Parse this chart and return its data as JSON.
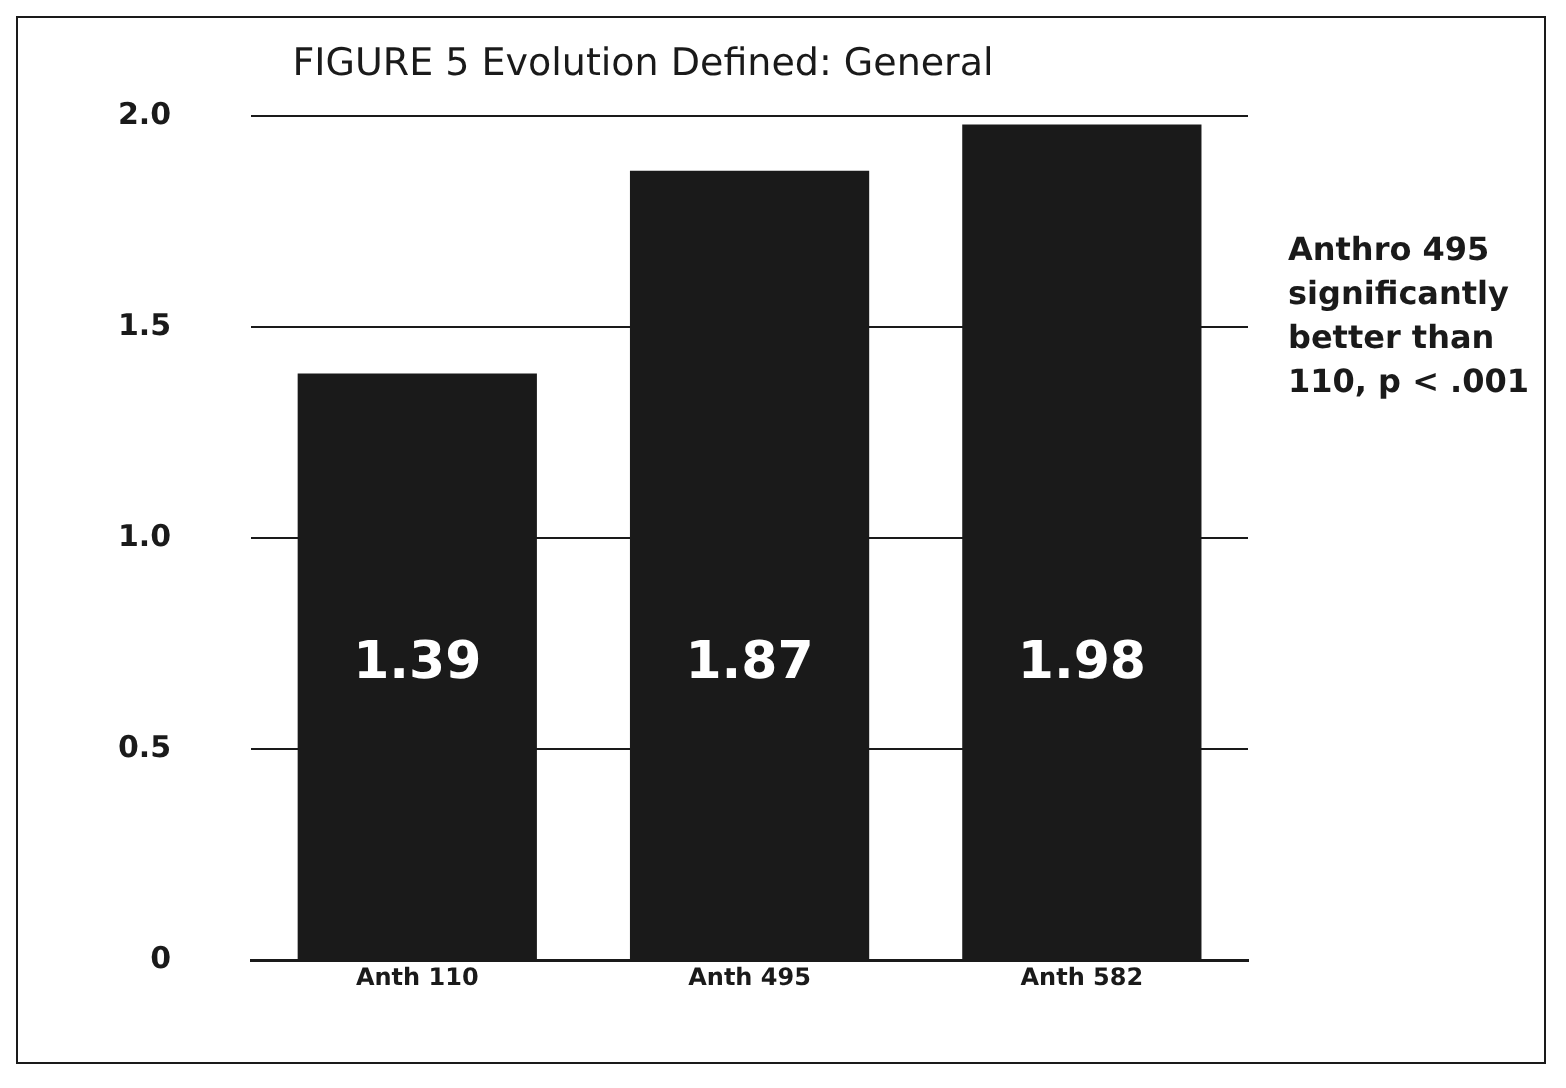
{
  "chart_data": {
    "type": "bar",
    "title": "FIGURE 5 Evolution Defined: General",
    "categories": [
      "Anth 110",
      "Anth 495",
      "Anth 582"
    ],
    "values": [
      1.39,
      1.87,
      1.98
    ],
    "color": "#1a1a1a",
    "ylim": [
      0,
      2
    ],
    "yticks": [
      0,
      {
        "value": 0.5,
        "label": "0.5"
      },
      {
        "value": 1,
        "label": "1.0"
      },
      {
        "value": 1.5,
        "label": "1.5"
      },
      {
        "value": 2,
        "label": "2.0"
      }
    ],
    "grid": "y",
    "legend": false,
    "data_labels": true,
    "annotations": [
      "Anthro 495 significantly better than 110, p < .001"
    ]
  }
}
